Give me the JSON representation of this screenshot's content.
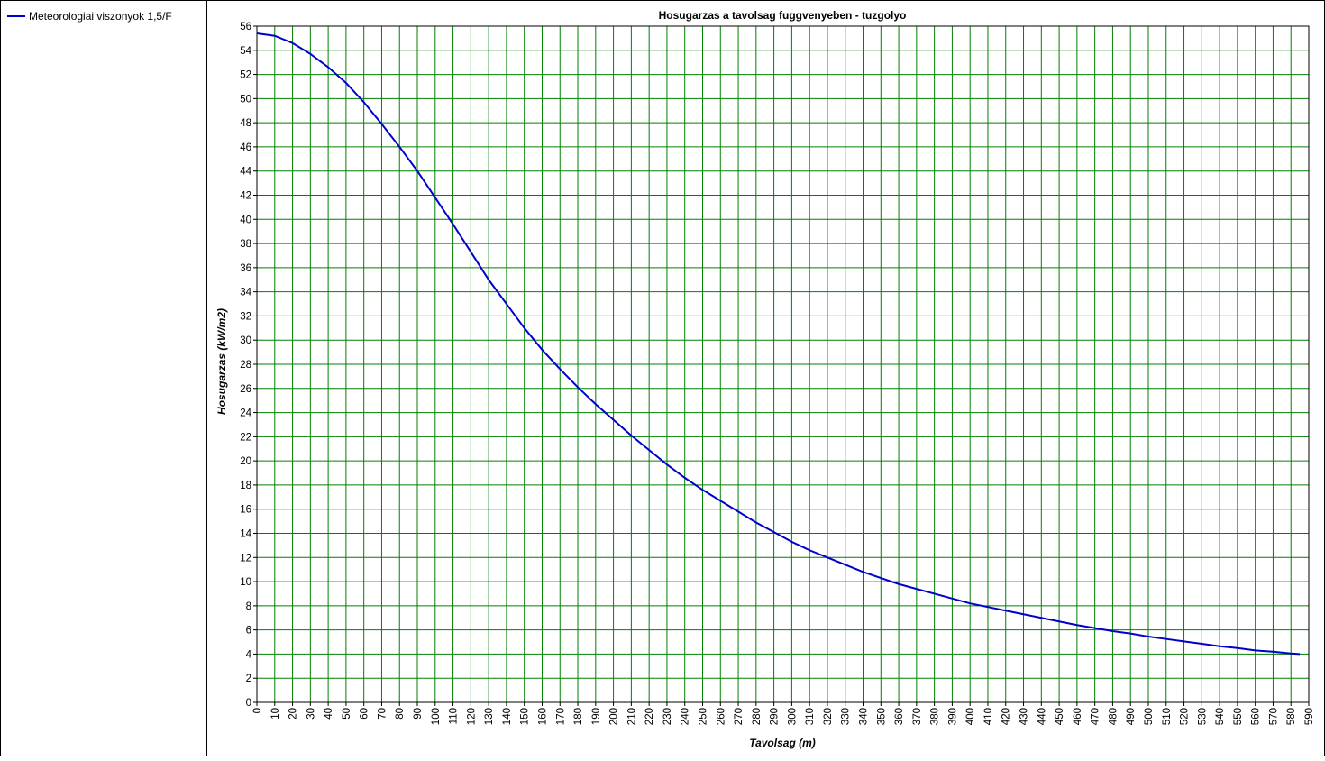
{
  "chart_data": {
    "type": "line",
    "title": "Hosugarzas a tavolsag fuggvenyeben - tuzgolyo",
    "x_label": "Tavolsag (m)",
    "y_label": "Hosugarzas (kW/m2)",
    "x": [
      0,
      10,
      20,
      30,
      40,
      50,
      60,
      70,
      80,
      90,
      100,
      110,
      120,
      130,
      140,
      150,
      160,
      170,
      180,
      190,
      200,
      210,
      220,
      230,
      240,
      250,
      260,
      270,
      280,
      290,
      300,
      310,
      320,
      330,
      340,
      350,
      360,
      370,
      380,
      390,
      400,
      410,
      420,
      430,
      440,
      450,
      460,
      470,
      480,
      490,
      500,
      510,
      520,
      530,
      540,
      550,
      560,
      570,
      580,
      585
    ],
    "series": [
      {
        "name": "Meteorologiai viszonyok 1,5/F",
        "color": "#0000cc",
        "values": [
          55.4,
          55.2,
          54.6,
          53.7,
          52.6,
          51.3,
          49.7,
          47.9,
          46.0,
          44.0,
          41.8,
          39.6,
          37.3,
          35.0,
          33.0,
          31.0,
          29.2,
          27.6,
          26.1,
          24.7,
          23.4,
          22.1,
          20.9,
          19.7,
          18.6,
          17.6,
          16.7,
          15.8,
          14.9,
          14.1,
          13.3,
          12.6,
          12.0,
          11.4,
          10.8,
          10.3,
          9.8,
          9.4,
          9.0,
          8.6,
          8.2,
          7.9,
          7.6,
          7.3,
          7.0,
          6.7,
          6.4,
          6.15,
          5.9,
          5.7,
          5.45,
          5.25,
          5.05,
          4.85,
          4.65,
          4.5,
          4.3,
          4.2,
          4.05,
          4.0
        ]
      }
    ],
    "xlim": [
      0,
      590
    ],
    "ylim": [
      0,
      56
    ],
    "xticks": [
      0,
      10,
      20,
      30,
      40,
      50,
      60,
      70,
      80,
      90,
      100,
      110,
      120,
      130,
      140,
      150,
      160,
      170,
      180,
      190,
      200,
      210,
      220,
      230,
      240,
      250,
      260,
      270,
      280,
      290,
      300,
      310,
      320,
      330,
      340,
      350,
      360,
      370,
      380,
      390,
      400,
      410,
      420,
      430,
      440,
      450,
      460,
      470,
      480,
      490,
      500,
      510,
      520,
      530,
      540,
      550,
      560,
      570,
      580,
      590
    ],
    "yticks": [
      0,
      2,
      4,
      6,
      8,
      10,
      12,
      14,
      16,
      18,
      20,
      22,
      24,
      26,
      28,
      30,
      32,
      34,
      36,
      38,
      40,
      42,
      44,
      46,
      48,
      50,
      52,
      54,
      56
    ],
    "grid": true,
    "grid_color": "#008000"
  }
}
